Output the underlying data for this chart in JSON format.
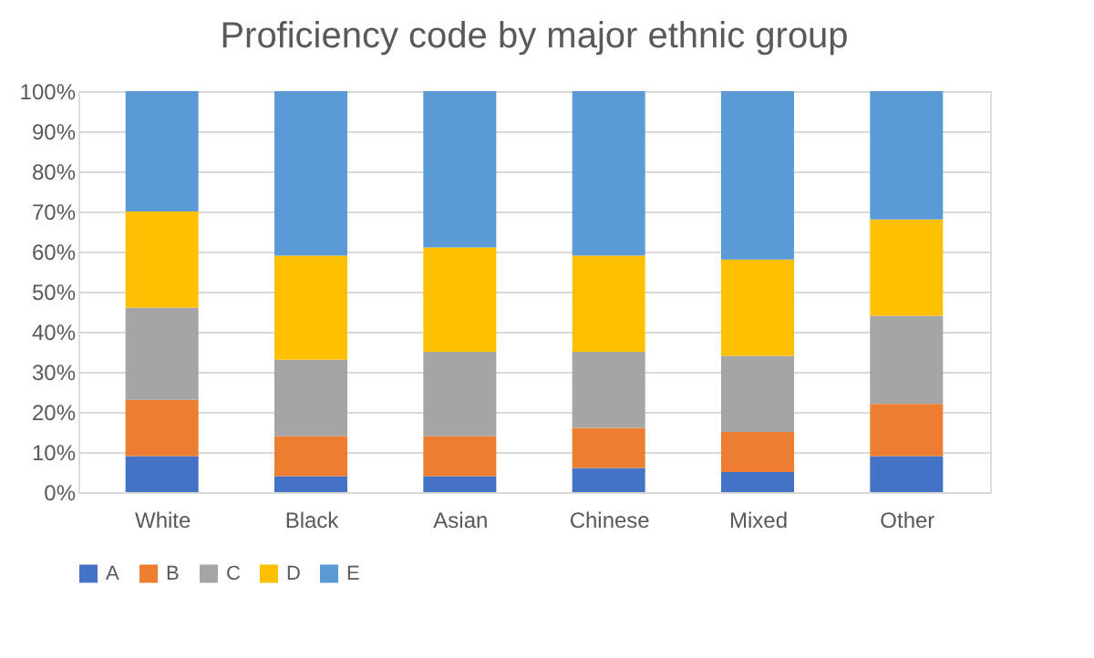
{
  "chart_data": {
    "type": "bar",
    "stacked": true,
    "title": "Proficiency code by major ethnic group",
    "categories": [
      "White",
      "Black",
      "Asian",
      "Chinese",
      "Mixed",
      "Other"
    ],
    "series": [
      {
        "name": "A",
        "color": "#4472c4",
        "values": [
          9,
          4,
          4,
          6,
          5,
          9
        ]
      },
      {
        "name": "B",
        "color": "#ed7d31",
        "values": [
          14,
          10,
          10,
          10,
          10,
          13
        ]
      },
      {
        "name": "C",
        "color": "#a5a5a5",
        "values": [
          23,
          19,
          21,
          19,
          19,
          22
        ]
      },
      {
        "name": "D",
        "color": "#ffc000",
        "values": [
          24,
          26,
          26,
          24,
          24,
          24
        ]
      },
      {
        "name": "E",
        "color": "#5b9bd5",
        "values": [
          30,
          41,
          39,
          41,
          42,
          32
        ]
      }
    ],
    "ylim": [
      0,
      100
    ],
    "yticks": [
      {
        "value": 0,
        "label": "0%"
      },
      {
        "value": 10,
        "label": "10%"
      },
      {
        "value": 20,
        "label": "20%"
      },
      {
        "value": 30,
        "label": "30%"
      },
      {
        "value": 40,
        "label": "40%"
      },
      {
        "value": 50,
        "label": "50%"
      },
      {
        "value": 60,
        "label": "60%"
      },
      {
        "value": 70,
        "label": "70%"
      },
      {
        "value": 80,
        "label": "80%"
      },
      {
        "value": 90,
        "label": "90%"
      },
      {
        "value": 100,
        "label": "100%"
      }
    ],
    "grid": "y",
    "legend": "bottom"
  }
}
